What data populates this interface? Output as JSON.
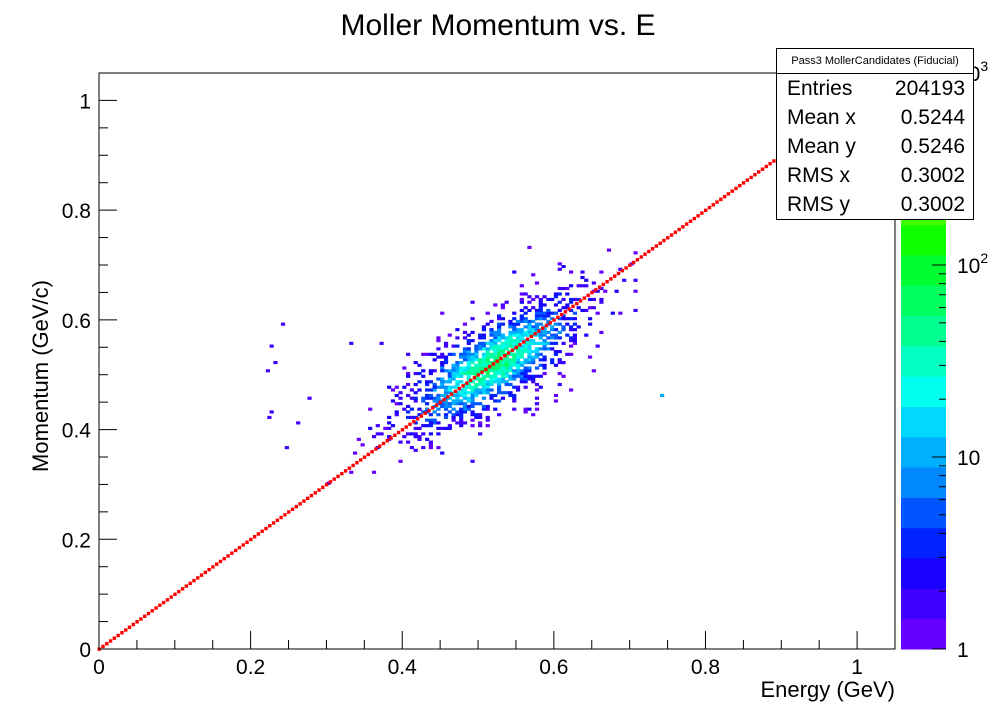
{
  "chart_data": {
    "type": "heatmap",
    "title": "Moller Momentum vs. E",
    "xlabel": "Energy (GeV)",
    "ylabel": "Momentum (GeV/c)",
    "xlim": [
      0,
      1.05
    ],
    "ylim": [
      0,
      1.05
    ],
    "x_ticks": [
      "0",
      "0.2",
      "0.4",
      "0.6",
      "0.8",
      "1"
    ],
    "y_ticks": [
      "0",
      "0.2",
      "0.4",
      "0.6",
      "0.8",
      "1"
    ],
    "z_scale": "log",
    "zlim": [
      1,
      1000
    ],
    "z_tick_labels": [
      {
        "value": 1,
        "base": "1",
        "exp": ""
      },
      {
        "value": 10,
        "base": "10",
        "exp": ""
      },
      {
        "value": 100,
        "base": "10",
        "exp": "2"
      },
      {
        "value": 1000,
        "base": "10",
        "exp": "3"
      }
    ],
    "palette": [
      "#6600ff",
      "#4000ff",
      "#1a00ff",
      "#0022ff",
      "#0055ff",
      "#0088ff",
      "#00b0ff",
      "#00d8ff",
      "#00ffee",
      "#00ffc0",
      "#00ff90",
      "#00ff60",
      "#00ff30",
      "#10ff00",
      "#40ff00",
      "#70ff00",
      "#a0ff00",
      "#d0ff00",
      "#ffff00"
    ],
    "line": {
      "x": [
        0,
        0.95
      ],
      "y": [
        0,
        0.95
      ],
      "color": "#ff0000"
    },
    "cluster": {
      "center": [
        0.52,
        0.52
      ],
      "major_axis": [
        0.7,
        0.71
      ],
      "sigma_major": 0.075,
      "sigma_minor": 0.028
    }
  },
  "stats": {
    "title": "Pass3 MollerCandidates (Fiducial)",
    "rows": [
      {
        "label": "Entries",
        "value": "204193"
      },
      {
        "label": "Mean x",
        "value": "0.5244"
      },
      {
        "label": "Mean y",
        "value": "0.5246"
      },
      {
        "label": "RMS x",
        "value": "0.3002"
      },
      {
        "label": "RMS y",
        "value": "0.3002"
      }
    ]
  }
}
